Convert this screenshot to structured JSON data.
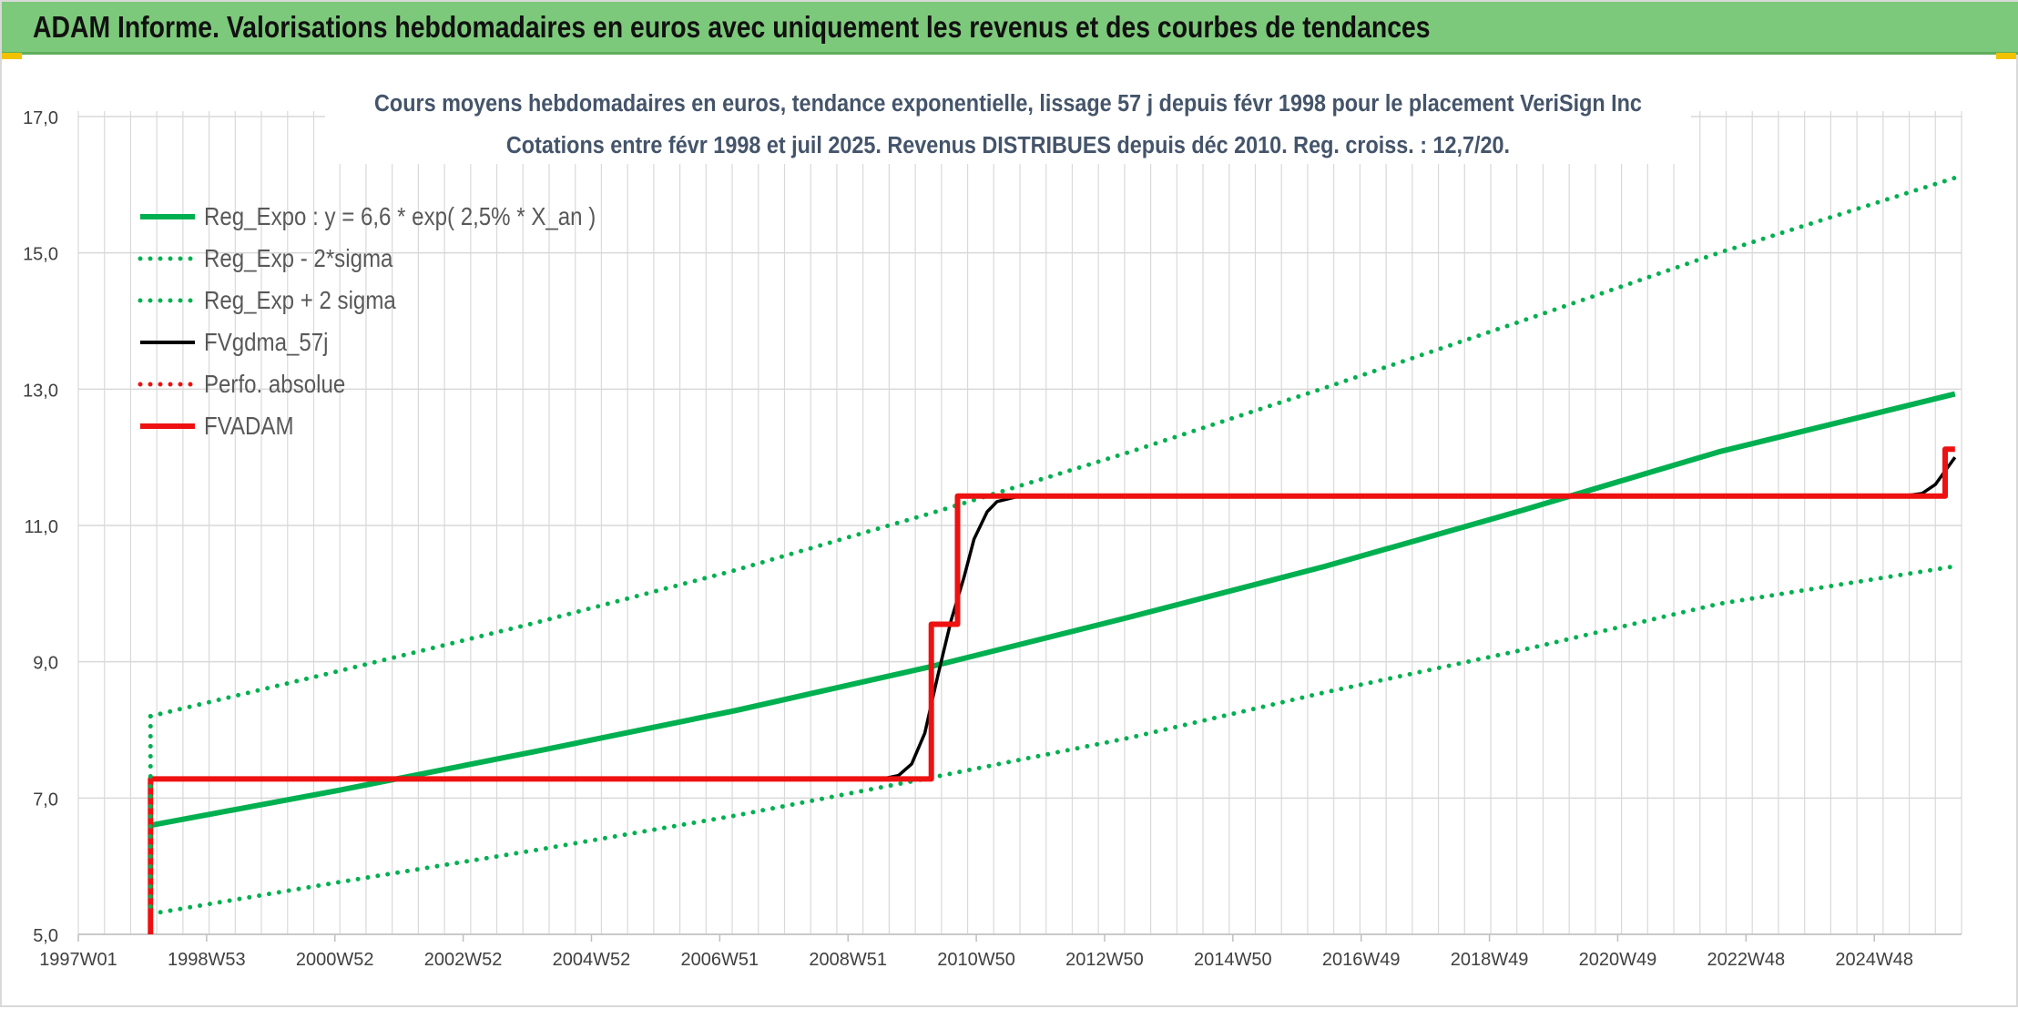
{
  "header": {
    "title": "ADAM Informe. Valorisations hebdomadaires en euros avec uniquement les revenus et des courbes de tendances"
  },
  "colors": {
    "header_bg": "#7dc97b",
    "trend": "#00b050",
    "smoothed": "#000000",
    "fvadam": "#ee1111",
    "grid": "#d9d9d9"
  },
  "chart_data": {
    "type": "line",
    "title": "Cours moyens hebdomadaires en euros, tendance exponentielle, lissage 57 j depuis févr 1998 pour le placement VeriSign Inc",
    "subtitle": "Cotations entre févr 1998 et juil 2025. Revenus DISTRIBUES depuis déc 2010. Reg. croiss. : 12,7/20.",
    "xlabel": "",
    "ylabel": "",
    "x_tick_labels": [
      "1997W01",
      "1998W53",
      "2000W52",
      "2002W52",
      "2004W52",
      "2006W51",
      "2008W51",
      "2010W50",
      "2012W50",
      "2014W50",
      "2016W49",
      "2018W49",
      "2020W49",
      "2022W48",
      "2024W48"
    ],
    "y_tick_labels": [
      "5,0",
      "7,0",
      "9,0",
      "11,0",
      "13,0",
      "15,0",
      "17,0"
    ],
    "ylim": [
      5,
      17
    ],
    "xlim": [
      1997.0,
      2025.7
    ],
    "grid": true,
    "legend_position": "top-left",
    "series": [
      {
        "name": "Reg_Expo : y = 6,6 * exp( 2,5% *  X_an )",
        "style": "solid-thick",
        "color": "#00b050",
        "x": [
          1998.1,
          2001.0,
          2004.0,
          2007.0,
          2010.0,
          2013.0,
          2016.0,
          2019.0,
          2022.0,
          2025.6
        ],
        "y": [
          6.6,
          7.12,
          7.69,
          8.28,
          8.93,
          9.65,
          10.4,
          11.22,
          12.08,
          12.93
        ]
      },
      {
        "name": "Reg_Exp - 2*sigma",
        "style": "dotted",
        "color": "#00b050",
        "x": [
          1998.1,
          2001.0,
          2004.0,
          2007.0,
          2010.0,
          2013.0,
          2016.0,
          2019.0,
          2022.0,
          2025.6
        ],
        "y": [
          5.3,
          5.77,
          6.24,
          6.74,
          7.3,
          7.88,
          8.55,
          9.17,
          9.85,
          10.4
        ]
      },
      {
        "name": "Reg_Exp + 2 sigma",
        "style": "dotted",
        "color": "#00b050",
        "x": [
          1998.1,
          2001.0,
          2004.0,
          2007.0,
          2010.0,
          2013.0,
          2016.0,
          2019.0,
          2022.0,
          2025.6
        ],
        "y": [
          8.2,
          8.87,
          9.58,
          10.34,
          11.18,
          12.07,
          13.02,
          14.0,
          15.0,
          16.1
        ]
      },
      {
        "name": "FVgdma_57j",
        "style": "solid",
        "color": "#000000",
        "x": [
          1998.1,
          2009.0,
          2009.3,
          2009.5,
          2009.7,
          2009.9,
          2010.1,
          2010.3,
          2010.5,
          2010.65,
          2010.85,
          2011.0,
          2011.3,
          2011.7,
          2024.8,
          2025.1,
          2025.3,
          2025.45,
          2025.6
        ],
        "y": [
          7.28,
          7.28,
          7.29,
          7.33,
          7.5,
          7.95,
          8.8,
          9.6,
          10.25,
          10.8,
          11.2,
          11.35,
          11.42,
          11.43,
          11.43,
          11.47,
          11.6,
          11.8,
          12.0
        ]
      },
      {
        "name": "Perfo. absolue",
        "style": "dotted",
        "color": "#ee1111",
        "x": [],
        "y": []
      },
      {
        "name": "FVADAM",
        "style": "solid-thick",
        "color": "#ee1111",
        "x": [
          1998.1,
          1998.1,
          2010.0,
          2010.0,
          2010.4,
          2010.4,
          2025.45,
          2025.45,
          2025.6
        ],
        "y": [
          5.0,
          7.28,
          7.28,
          9.55,
          9.55,
          11.43,
          11.43,
          12.12,
          12.12
        ]
      }
    ]
  }
}
